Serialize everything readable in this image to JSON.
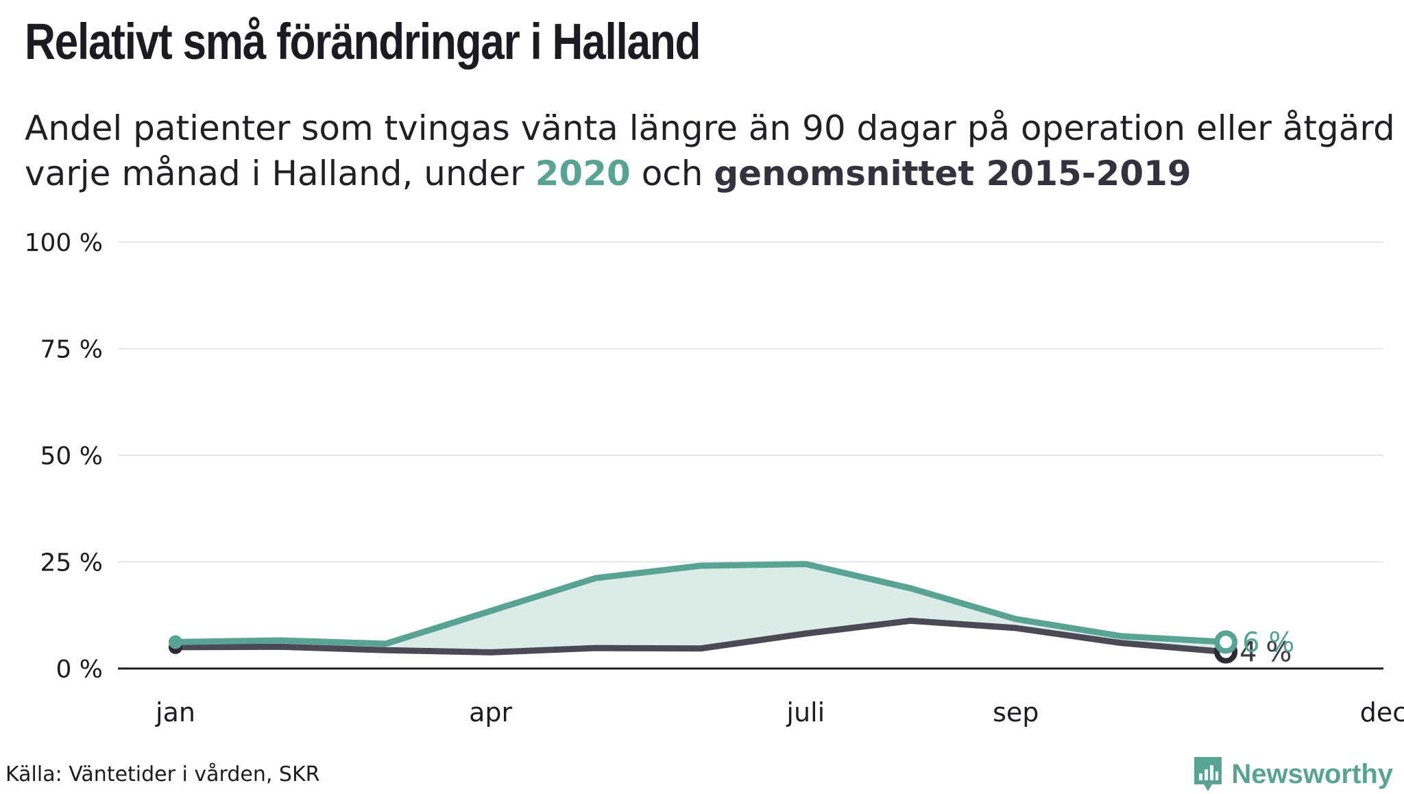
{
  "header": {
    "title": "Relativt små förändringar i Halland",
    "subtitle_part1": "Andel patienter som tvingas vänta längre än 90 dagar på operation eller åtgärd",
    "subtitle_part2": "varje månad i Halland, under ",
    "subtitle_2020": "2020",
    "subtitle_och": " och ",
    "subtitle_avg": "genomsnittet 2015-2019"
  },
  "footer": {
    "source": "Källa: Väntetider i vården, SKR",
    "logo_text": "Newsworthy"
  },
  "colors": {
    "series_2020": "#58a394",
    "series_avg": "#4a4955",
    "fill": "#dbebe8",
    "grid": "#e6e6e6",
    "baseline": "#1b1b22",
    "text": "#1b1b22"
  },
  "chart_data": {
    "type": "line",
    "x": [
      1,
      2,
      3,
      4,
      5,
      6,
      7,
      8,
      9,
      10,
      11,
      12
    ],
    "xlim": [
      1,
      12.5
    ],
    "ylim": [
      0,
      100
    ],
    "y_ticks": [
      0,
      25,
      50,
      75,
      100
    ],
    "y_tick_labels": [
      "0 %",
      "25 %",
      "50 %",
      "75 %",
      "100 %"
    ],
    "x_ticks": [
      1,
      4,
      7,
      9,
      12.5
    ],
    "x_tick_labels": [
      "jan",
      "apr",
      "juli",
      "sep",
      "dec"
    ],
    "grid": true,
    "series": [
      {
        "name": "2020",
        "values": [
          6.2,
          6.6,
          5.8,
          13.5,
          21.2,
          24.1,
          24.5,
          18.8,
          11.6,
          7.6,
          6.2,
          null
        ],
        "end_label": "6 %"
      },
      {
        "name": "genomsnittet 2015-2019",
        "values": [
          5.0,
          5.1,
          4.3,
          3.8,
          4.8,
          4.7,
          8.2,
          11.2,
          9.5,
          6.0,
          3.9,
          null
        ],
        "end_label": "4 %"
      }
    ]
  }
}
